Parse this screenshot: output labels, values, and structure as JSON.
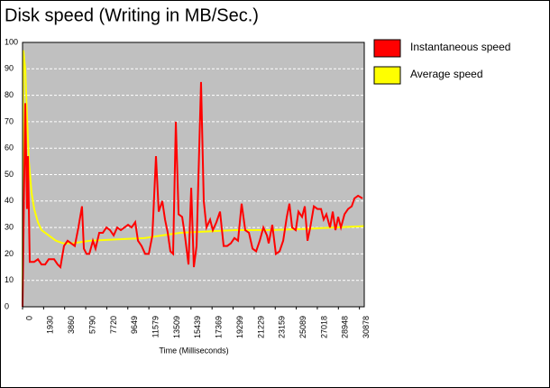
{
  "chart_data": {
    "type": "line",
    "title": "Disk speed (Writing in MB/Sec.)",
    "x_label": "Time (Milliseconds)",
    "xlim": [
      0,
      31320
    ],
    "xticks": [
      0,
      1930,
      3860,
      5790,
      7720,
      9649,
      11579,
      13509,
      15439,
      17369,
      19299,
      21229,
      23159,
      25089,
      27018,
      28948,
      30878
    ],
    "ylim": [
      0,
      100
    ],
    "yticks": [
      0,
      10,
      20,
      30,
      40,
      50,
      60,
      70,
      80,
      90,
      100
    ],
    "grid": true,
    "legend": "right",
    "background": "#c0c0c0",
    "series": [
      {
        "name": "Instantaneous speed",
        "color": "#ff0000",
        "x": [
          0,
          250,
          410,
          500,
          660,
          1070,
          1410,
          1740,
          2070,
          2400,
          2890,
          3220,
          3470,
          3800,
          4130,
          4460,
          4790,
          5120,
          5450,
          5620,
          5870,
          6120,
          6450,
          6690,
          7030,
          7360,
          7690,
          8020,
          8350,
          8680,
          9010,
          9340,
          9670,
          10000,
          10330,
          10580,
          10910,
          11240,
          11570,
          11900,
          12230,
          12480,
          12810,
          13060,
          13310,
          13550,
          13800,
          14050,
          14300,
          14630,
          14880,
          15210,
          15460,
          15700,
          15950,
          16360,
          16610,
          16860,
          17190,
          17440,
          17770,
          18100,
          18430,
          18760,
          19090,
          19420,
          19750,
          20080,
          20410,
          20750,
          21080,
          21410,
          21740,
          22070,
          22400,
          22560,
          22890,
          23220,
          23560,
          23890,
          24220,
          24460,
          24710,
          25040,
          25290,
          25620,
          25870,
          26120,
          26370,
          26700,
          27030,
          27360,
          27600,
          27850,
          28180,
          28430,
          28680,
          28930,
          29180,
          29510,
          29840,
          30170,
          30420,
          30750,
          31160
        ],
        "values": [
          0,
          77,
          37,
          57,
          17,
          17,
          18,
          16,
          16,
          18,
          18,
          16,
          15,
          23,
          25,
          24,
          23,
          30,
          38,
          22,
          20,
          20,
          25,
          22,
          28,
          28,
          30,
          29,
          27,
          30,
          29,
          30,
          31,
          30,
          32,
          25,
          23,
          20,
          20,
          27,
          57,
          36,
          40,
          33,
          28,
          21,
          20,
          70,
          35,
          34,
          27,
          16,
          45,
          15,
          23,
          85,
          40,
          30,
          33,
          29,
          32,
          36,
          23,
          23,
          24,
          26,
          25,
          39,
          29,
          28,
          22,
          21,
          25,
          30,
          27,
          24,
          31,
          20,
          21,
          25,
          34,
          39,
          30,
          29,
          36,
          34,
          38,
          25,
          30,
          38,
          37,
          37,
          33,
          35,
          30,
          36,
          29,
          34,
          30,
          35,
          37,
          38,
          41,
          42,
          41
        ]
      },
      {
        "name": "Average speed",
        "color": "#ffff00",
        "x": [
          0,
          80,
          250,
          410,
          580,
          830,
          1070,
          1410,
          1740,
          2070,
          2560,
          3060,
          3720,
          4550,
          6200,
          8680,
          11160,
          12810,
          14460,
          16940,
          19420,
          22730,
          26030,
          28510,
          31320
        ],
        "values": [
          0,
          97,
          90,
          72,
          55,
          43,
          37,
          32,
          29,
          28,
          26.5,
          25,
          24,
          24,
          25,
          25.5,
          26,
          27,
          28,
          28.5,
          29,
          29,
          29.5,
          30,
          30.5
        ]
      }
    ]
  }
}
